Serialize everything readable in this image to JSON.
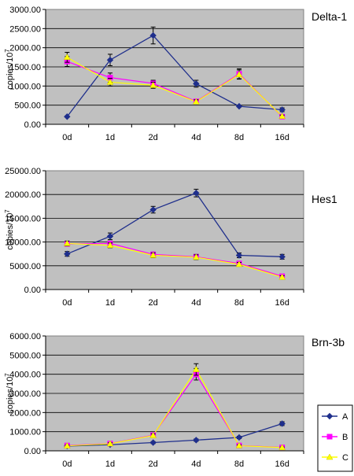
{
  "chart_data": [
    {
      "type": "line",
      "title": "Delta-1",
      "ylabel": "copies/10",
      "ylabel_sup": "7",
      "categories": [
        "0d",
        "1d",
        "2d",
        "4d",
        "8d",
        "16d"
      ],
      "ylim": [
        0,
        3000
      ],
      "yticks": [
        "0.00",
        "500.00",
        "1000.00",
        "1500.00",
        "2000.00",
        "2500.00",
        "3000.00"
      ],
      "series": [
        {
          "name": "A",
          "color": "#1f2f8c",
          "values": [
            200,
            1680,
            2320,
            1060,
            470,
            380
          ],
          "err": [
            0,
            150,
            220,
            90,
            20,
            50
          ]
        },
        {
          "name": "B",
          "color": "#ff00ff",
          "values": [
            1640,
            1220,
            1070,
            600,
            1320,
            200
          ],
          "err": [
            130,
            120,
            80,
            50,
            130,
            30
          ]
        },
        {
          "name": "C",
          "color": "#ffff00",
          "values": [
            1750,
            1100,
            1020,
            590,
            1300,
            210
          ],
          "err": [
            130,
            100,
            80,
            50,
            120,
            30
          ]
        }
      ]
    },
    {
      "type": "line",
      "title": "Hes1",
      "ylabel": "copies/10",
      "ylabel_sup": "7",
      "categories": [
        "0d",
        "1d",
        "2d",
        "4d",
        "8d",
        "16d"
      ],
      "ylim": [
        0,
        25000
      ],
      "yticks": [
        "0.00",
        "5000.00",
        "10000.00",
        "15000.00",
        "20000.00",
        "25000.00"
      ],
      "series": [
        {
          "name": "A",
          "color": "#1f2f8c",
          "values": [
            7500,
            11200,
            16800,
            20300,
            7200,
            6900
          ],
          "err": [
            500,
            700,
            700,
            800,
            500,
            500
          ]
        },
        {
          "name": "B",
          "color": "#ff00ff",
          "values": [
            9600,
            9700,
            7400,
            6900,
            5500,
            2800
          ],
          "err": [
            500,
            500,
            500,
            500,
            400,
            300
          ]
        },
        {
          "name": "C",
          "color": "#ffff00",
          "values": [
            9700,
            9300,
            7200,
            6800,
            5300,
            2600
          ],
          "err": [
            500,
            500,
            500,
            500,
            400,
            300
          ]
        }
      ]
    },
    {
      "type": "line",
      "title": "Brn-3b",
      "ylabel": "copies/10",
      "ylabel_sup": "7",
      "categories": [
        "0d",
        "1d",
        "2d",
        "4d",
        "8d",
        "16d"
      ],
      "ylim": [
        0,
        6000
      ],
      "yticks": [
        "0.00",
        "1000.00",
        "2000.00",
        "3000.00",
        "4000.00",
        "5000.00",
        "6000.00"
      ],
      "legend": "right",
      "series": [
        {
          "name": "A",
          "color": "#1f2f8c",
          "values": [
            250,
            320,
            430,
            560,
            700,
            1420
          ],
          "err": [
            40,
            50,
            50,
            60,
            60,
            100
          ]
        },
        {
          "name": "B",
          "color": "#ff00ff",
          "values": [
            280,
            380,
            820,
            4000,
            280,
            180
          ],
          "err": [
            40,
            50,
            80,
            300,
            40,
            30
          ]
        },
        {
          "name": "C",
          "color": "#ffff00",
          "values": [
            260,
            370,
            800,
            4250,
            270,
            170
          ],
          "err": [
            40,
            50,
            80,
            300,
            40,
            30
          ]
        }
      ]
    }
  ]
}
